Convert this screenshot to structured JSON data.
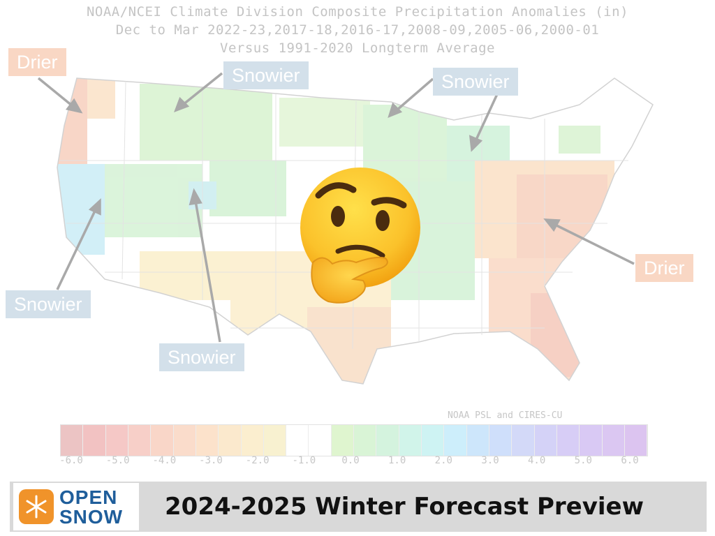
{
  "map": {
    "title_lines": [
      "NOAA/NCEI Climate Division Composite Precipitation Anomalies (in)",
      "Dec to Mar  2022-23,2017-18,2016-17,2008-09,2005-06,2000-01",
      "Versus 1991-2020 Longterm Average"
    ],
    "credit": "NOAA PSL and CIRES-CU",
    "callouts": [
      {
        "id": "drier-northwest",
        "text": "Drier",
        "kind": "drier"
      },
      {
        "id": "snowier-northern-rockies",
        "text": "Snowier",
        "kind": "snowier"
      },
      {
        "id": "snowier-great-lakes",
        "text": "Snowier",
        "kind": "snowier"
      },
      {
        "id": "drier-southeast",
        "text": "Drier",
        "kind": "drier"
      },
      {
        "id": "snowier-sierra",
        "text": "Snowier",
        "kind": "snowier"
      },
      {
        "id": "snowier-southern-rockies",
        "text": "Snowier",
        "kind": "snowier"
      }
    ],
    "colorbar": {
      "tick_labels": [
        "-6.0",
        "-5.0",
        "-4.0",
        "-3.0",
        "-2.0",
        "-1.0",
        "0.0",
        "1.0",
        "2.0",
        "3.0",
        "4.0",
        "5.0",
        "6.0"
      ],
      "colors": [
        "#ecc4c4",
        "#f2c2c2",
        "#f5c8c6",
        "#f7cfc8",
        "#f9d6c8",
        "#fadccb",
        "#fce2cb",
        "#fbe9cd",
        "#fbeecf",
        "#f8f1d0",
        "#ffffff",
        "#ffffff",
        "#dff5cf",
        "#d9f4d6",
        "#d4f3de",
        "#d1f4ea",
        "#cef3f3",
        "#cdeefb",
        "#cde6fb",
        "#cfdffb",
        "#d3d9f8",
        "#d4d2f7",
        "#d7cdf6",
        "#d9c9f4",
        "#dbc7f2",
        "#dcc4f0"
      ]
    },
    "emoji": "thinking-face"
  },
  "footer": {
    "logo_line1": "OPEN",
    "logo_line2": "SNOW",
    "title": "2024-2025 Winter Forecast Preview"
  }
}
